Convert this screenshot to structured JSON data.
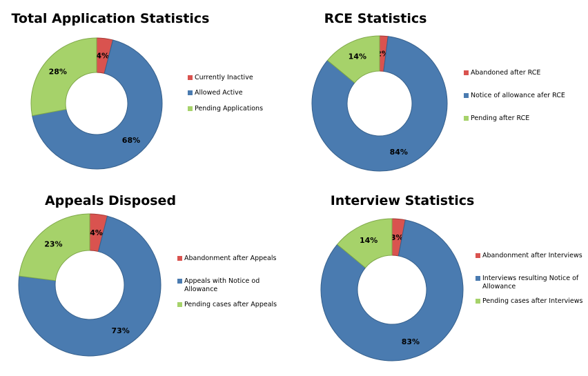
{
  "colors": {
    "abandoned": "#d9534f",
    "allowed": "#4a7bb0",
    "pending": "#a6d26a"
  },
  "chart_data": [
    {
      "type": "pie",
      "donut": true,
      "title": "Total Application Statistics",
      "legend_position": "right",
      "categories": [
        "Currently Inactive",
        "Allowed Active",
        "Pending Applications"
      ],
      "values": [
        4,
        68,
        28
      ],
      "data_labels": [
        "4%",
        "68%",
        "28%"
      ]
    },
    {
      "type": "pie",
      "donut": true,
      "title": "RCE Statistics",
      "legend_position": "right",
      "categories": [
        "Abandoned after RCE",
        "Notice of allowance afer RCE",
        "Pending after RCE"
      ],
      "values": [
        2,
        84,
        14
      ],
      "data_labels": [
        "2%",
        "84%",
        "14%"
      ]
    },
    {
      "type": "pie",
      "donut": true,
      "title": "Appeals Disposed",
      "legend_position": "right",
      "categories": [
        "Abandonment after Appeals",
        "Appeals with Notice od Allowance",
        "Pending cases after Appeals"
      ],
      "values": [
        4,
        73,
        23
      ],
      "data_labels": [
        "4%",
        "73%",
        "23%"
      ]
    },
    {
      "type": "pie",
      "donut": true,
      "title": "Interview Statistics",
      "legend_position": "right",
      "categories": [
        "Abandonment after Interviews",
        "Interviews resulting Notice of Allowance",
        "Pending cases after Interviews"
      ],
      "values": [
        3,
        83,
        14
      ],
      "data_labels": [
        "3%",
        "83%",
        "14%"
      ]
    }
  ]
}
